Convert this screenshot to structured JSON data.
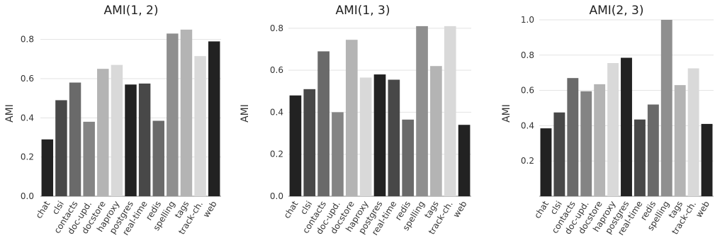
{
  "colors": {
    "bars": [
      "#222222",
      "#484848",
      "#6a6a6a",
      "#848484",
      "#b4b4b4",
      "#d9d9d9",
      "#222222",
      "#484848",
      "#6a6a6a",
      "#8f8f8f",
      "#b4b4b4",
      "#d9d9d9",
      "#222222"
    ],
    "grid": "#e3e3e3",
    "text": "#333333"
  },
  "chart_data": [
    {
      "type": "bar",
      "title": "AMI(1, 2)",
      "ylabel": "AMI",
      "ylim": [
        0,
        0.9
      ],
      "yticks": [
        "0.0",
        "0.2",
        "0.4",
        "0.6",
        "0.8"
      ],
      "categories": [
        "chat",
        "clsi",
        "contacts",
        "doc-upd.",
        "docstore",
        "haproxy",
        "postgres",
        "real-time",
        "redis",
        "spelling",
        "tags",
        "track-ch.",
        "web"
      ],
      "values": [
        0.29,
        0.49,
        0.58,
        0.38,
        0.65,
        0.67,
        0.57,
        0.575,
        0.385,
        0.83,
        0.85,
        0.715,
        0.79
      ],
      "grid": true
    },
    {
      "type": "bar",
      "title": "AMI(1, 3)",
      "ylabel": "AMI",
      "ylim": [
        0,
        0.84
      ],
      "yticks": [
        "0.0",
        "0.2",
        "0.4",
        "0.6",
        "0.8"
      ],
      "categories": [
        "chat",
        "clsi",
        "contacts",
        "doc-upd.",
        "docstore",
        "haproxy",
        "postgres",
        "real-time",
        "redis",
        "spelling",
        "tags",
        "track-ch.",
        "web"
      ],
      "values": [
        0.48,
        0.51,
        0.69,
        0.4,
        0.745,
        0.565,
        0.58,
        0.555,
        0.365,
        0.81,
        0.62,
        0.81,
        0.34
      ],
      "grid": true
    },
    {
      "type": "bar",
      "title": "AMI(2, 3)",
      "ylabel": "AMI",
      "ylim": [
        0,
        1.0
      ],
      "yticks": [
        "0.2",
        "0.4",
        "0.6",
        "0.8",
        "1.0"
      ],
      "ytick_values": [
        0.2,
        0.4,
        0.6,
        0.8,
        1.0
      ],
      "categories": [
        "chat",
        "clsi",
        "contacts",
        "doc-upd.",
        "docstore",
        "haproxy",
        "postgres",
        "real-time",
        "redis",
        "spelling",
        "tags",
        "track-ch.",
        "web"
      ],
      "values": [
        0.385,
        0.475,
        0.67,
        0.595,
        0.635,
        0.755,
        0.785,
        0.435,
        0.52,
        1.0,
        0.63,
        0.725,
        0.41
      ],
      "grid": true
    }
  ]
}
